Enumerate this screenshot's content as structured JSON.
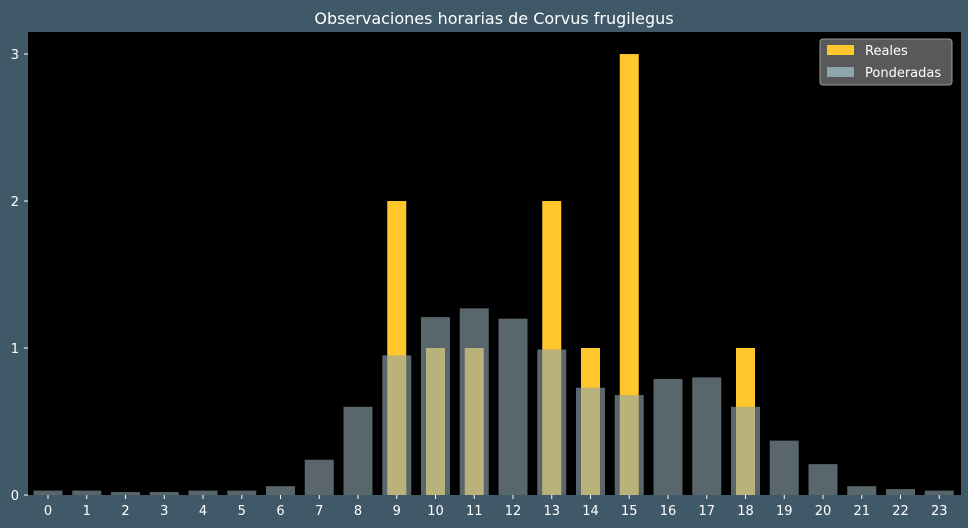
{
  "chart_data": {
    "type": "bar",
    "title": "Observaciones horarias de Corvus frugilegus",
    "xlabel": "",
    "ylabel": "",
    "categories": [
      "0",
      "1",
      "2",
      "3",
      "4",
      "5",
      "6",
      "7",
      "8",
      "9",
      "10",
      "11",
      "12",
      "13",
      "14",
      "15",
      "16",
      "17",
      "18",
      "19",
      "20",
      "21",
      "22",
      "23"
    ],
    "ylim": [
      0,
      3.15
    ],
    "yticks": [
      "0",
      "1",
      "2",
      "3"
    ],
    "grid": false,
    "legend_position": "top-right",
    "series": [
      {
        "name": "Reales",
        "color": "#ffc72c",
        "values": [
          0,
          0,
          0,
          0,
          0,
          0,
          0,
          0,
          0,
          2,
          1,
          1,
          0,
          2,
          1,
          3,
          0,
          0,
          1,
          0,
          0,
          0,
          0,
          0
        ]
      },
      {
        "name": "Ponderadas",
        "color": "#8fa5ad",
        "values": [
          0.03,
          0.03,
          0.02,
          0.02,
          0.03,
          0.03,
          0.06,
          0.24,
          0.6,
          0.95,
          1.21,
          1.27,
          1.2,
          0.99,
          0.73,
          0.68,
          0.79,
          0.8,
          0.6,
          0.37,
          0.21,
          0.06,
          0.04,
          0.03
        ]
      }
    ],
    "colors": {
      "background": "#3f5968",
      "plot_background": "#000000",
      "text": "#ffffff",
      "legend_background": "#595959"
    }
  }
}
